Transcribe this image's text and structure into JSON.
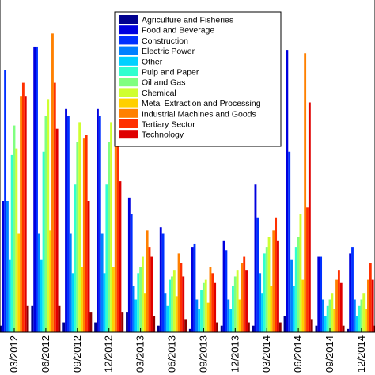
{
  "chart_data": {
    "type": "bar",
    "title": "",
    "xlabel": "",
    "ylabel": "",
    "grid": false,
    "legend_placement": "top-center",
    "ylim": [
      0,
      100
    ],
    "categories": [
      "03/2012",
      "06/2012",
      "09/2012",
      "12/2012",
      "03/2013",
      "06/2013",
      "09/2013",
      "12/2013",
      "03/2014",
      "06/2014",
      "09/2014",
      "12/2014"
    ],
    "series": [
      {
        "name": "Agriculture and Fisheries",
        "color": "#00008f",
        "values": [
          2,
          8,
          3,
          3,
          6,
          2,
          1,
          2,
          2,
          5,
          2,
          1
        ]
      },
      {
        "name": "Food and Beverage",
        "color": "#0000df",
        "values": [
          40,
          87,
          68,
          68,
          41,
          32,
          26,
          28,
          45,
          86,
          23,
          24
        ]
      },
      {
        "name": "Construction",
        "color": "#0030ff",
        "values": [
          80,
          87,
          66,
          66,
          36,
          30,
          27,
          25,
          35,
          55,
          23,
          26
        ]
      },
      {
        "name": "Electric Power",
        "color": "#0080ff",
        "values": [
          40,
          30,
          30,
          30,
          14,
          12,
          10,
          10,
          18,
          22,
          10,
          10
        ]
      },
      {
        "name": "Other",
        "color": "#00d0ff",
        "values": [
          22,
          22,
          18,
          18,
          10,
          8,
          7,
          7,
          12,
          14,
          5,
          5
        ]
      },
      {
        "name": "Pulp and Paper",
        "color": "#30ffcf",
        "values": [
          54,
          55,
          45,
          45,
          18,
          16,
          13,
          14,
          24,
          26,
          8,
          8
        ]
      },
      {
        "name": "Oil and Gas",
        "color": "#80ff80",
        "values": [
          63,
          66,
          58,
          58,
          20,
          17,
          15,
          17,
          26,
          29,
          10,
          10
        ]
      },
      {
        "name": "Chemical",
        "color": "#cfff30",
        "values": [
          56,
          71,
          64,
          64,
          23,
          19,
          16,
          19,
          29,
          36,
          12,
          12
        ]
      },
      {
        "name": "Metal Extraction and Processing",
        "color": "#ffd000",
        "values": [
          30,
          31,
          20,
          20,
          12,
          11,
          9,
          10,
          14,
          16,
          7,
          7
        ]
      },
      {
        "name": "Industrial Machines and Goods",
        "color": "#ff8000",
        "values": [
          72,
          91,
          59,
          69,
          31,
          24,
          20,
          21,
          31,
          85,
          16,
          16
        ]
      },
      {
        "name": "Tertiary Sector",
        "color": "#ff3000",
        "values": [
          76,
          76,
          60,
          61,
          26,
          21,
          18,
          23,
          35,
          38,
          19,
          21
        ]
      },
      {
        "name": "Technology",
        "color": "#df0000",
        "values": [
          72,
          62,
          40,
          46,
          23,
          17,
          15,
          19,
          28,
          70,
          15,
          16
        ]
      },
      {
        "name": "",
        "color": "#8f0000",
        "values": [
          8,
          8,
          6,
          6,
          5,
          4,
          3,
          3,
          3,
          4,
          2,
          2
        ]
      }
    ]
  }
}
